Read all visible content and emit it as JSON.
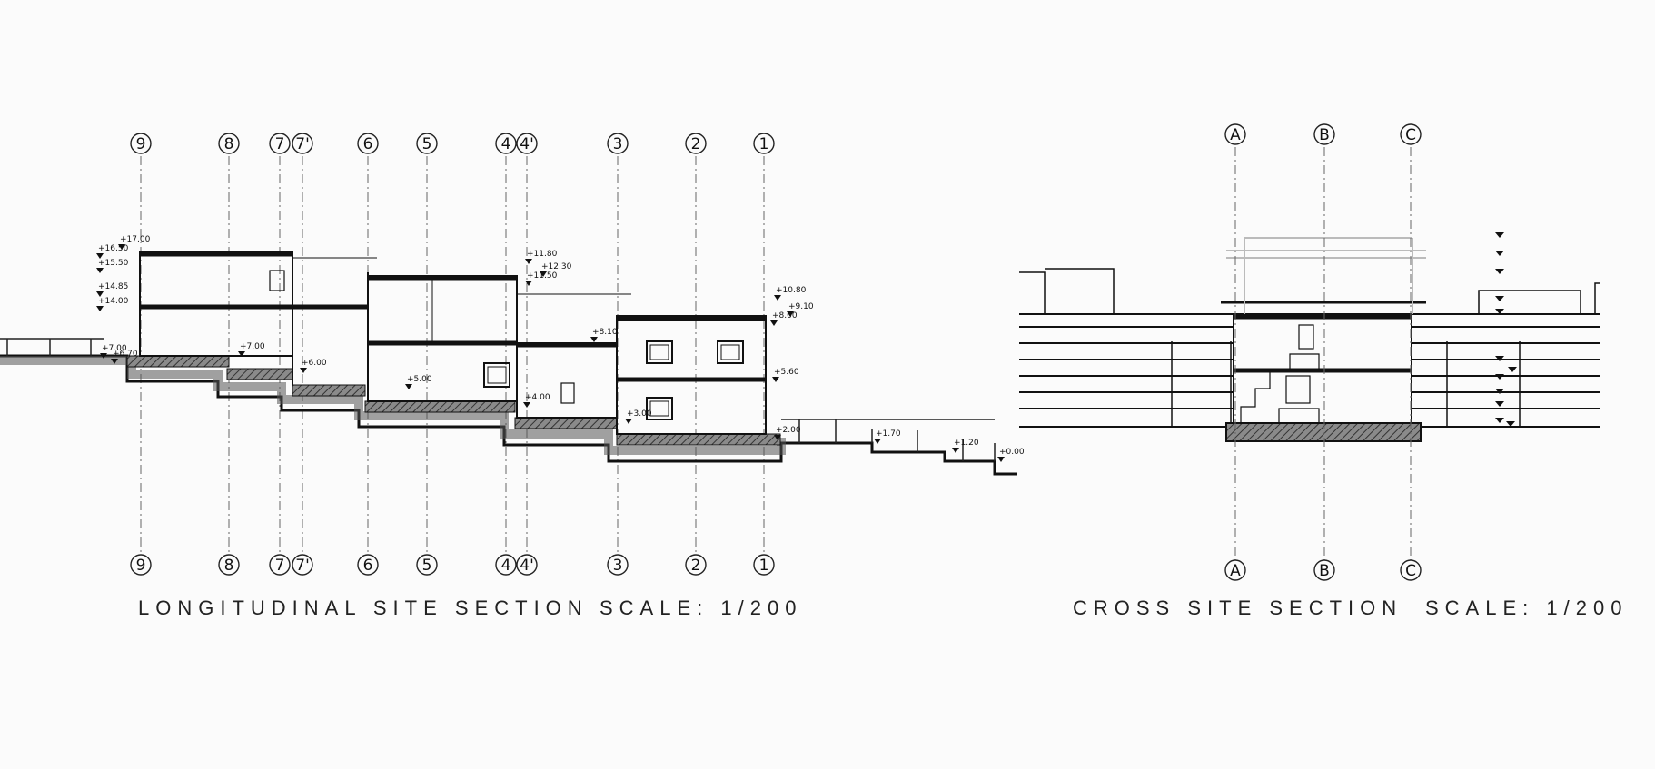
{
  "longitudinal": {
    "title": "LONGITUDINAL SITE SECTION",
    "scale": "SCALE: 1/200",
    "grid_axes": [
      "9",
      "8",
      "7",
      "7'",
      "6",
      "5",
      "4",
      "4'",
      "3",
      "2",
      "1"
    ],
    "levels": [
      "+17.00",
      "+16.50",
      "+15.50",
      "+14.85",
      "+14.00",
      "+11.80",
      "+12.30",
      "+11.50",
      "+10.80",
      "+9.10",
      "+8.00",
      "+8.10",
      "+7.00",
      "+7.00",
      "+6.70",
      "+6.00",
      "+5.60",
      "+5.00",
      "+4.00",
      "+3.00",
      "+2.00",
      "+1.70",
      "+1.20",
      "+0.00"
    ]
  },
  "cross": {
    "title": "CROSS SITE SECTION",
    "scale": "SCALE: 1/200",
    "grid_axes": [
      "A",
      "B",
      "C"
    ]
  },
  "colors": {
    "line": "#1a1a1a",
    "hatch": "#555555",
    "axis": "#666666",
    "light": "#bbbbbb"
  }
}
